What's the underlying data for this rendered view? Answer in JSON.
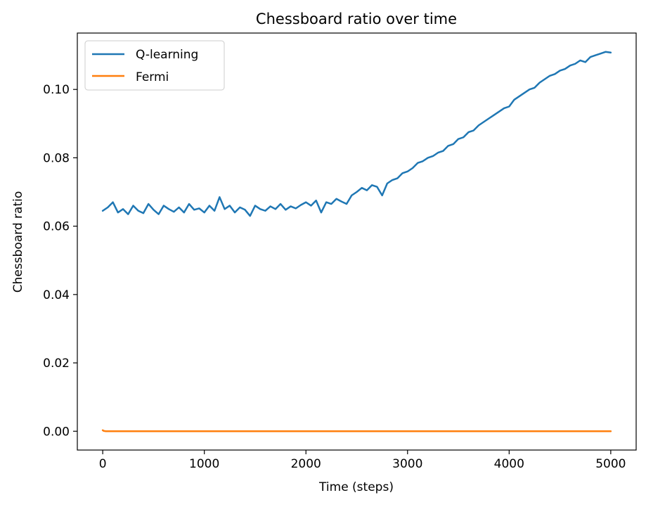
{
  "chart_data": {
    "type": "line",
    "title": "Chessboard ratio over time",
    "xlabel": "Time (steps)",
    "ylabel": "Chessboard ratio",
    "xlim": [
      -250,
      5250
    ],
    "ylim": [
      -0.0055,
      0.1165
    ],
    "xticks": [
      0,
      1000,
      2000,
      3000,
      4000,
      5000
    ],
    "xtick_labels": [
      "0",
      "1000",
      "2000",
      "3000",
      "4000",
      "5000"
    ],
    "yticks": [
      0.0,
      0.02,
      0.04,
      0.06,
      0.08,
      0.1
    ],
    "ytick_labels": [
      "0.00",
      "0.02",
      "0.04",
      "0.06",
      "0.08",
      "0.10"
    ],
    "grid": false,
    "legend_position": "top-left",
    "series": [
      {
        "name": "Q-learning",
        "color": "#1f77b4",
        "x": [
          0,
          50,
          100,
          150,
          200,
          250,
          300,
          350,
          400,
          450,
          500,
          550,
          600,
          650,
          700,
          750,
          800,
          850,
          900,
          950,
          1000,
          1050,
          1100,
          1150,
          1200,
          1250,
          1300,
          1350,
          1400,
          1450,
          1500,
          1550,
          1600,
          1650,
          1700,
          1750,
          1800,
          1850,
          1900,
          1950,
          2000,
          2050,
          2100,
          2150,
          2200,
          2250,
          2300,
          2350,
          2400,
          2450,
          2500,
          2550,
          2600,
          2650,
          2700,
          2750,
          2800,
          2850,
          2900,
          2950,
          3000,
          3050,
          3100,
          3150,
          3200,
          3250,
          3300,
          3350,
          3400,
          3450,
          3500,
          3550,
          3600,
          3650,
          3700,
          3750,
          3800,
          3850,
          3900,
          3950,
          4000,
          4050,
          4100,
          4150,
          4200,
          4250,
          4300,
          4350,
          4400,
          4450,
          4500,
          4550,
          4600,
          4650,
          4700,
          4750,
          4800,
          4850,
          4900,
          4950,
          5000
        ],
        "values": [
          0.0645,
          0.0655,
          0.067,
          0.064,
          0.065,
          0.0635,
          0.066,
          0.0645,
          0.0638,
          0.0665,
          0.0648,
          0.0635,
          0.066,
          0.065,
          0.0642,
          0.0655,
          0.064,
          0.0665,
          0.0648,
          0.0652,
          0.064,
          0.066,
          0.0645,
          0.0685,
          0.065,
          0.066,
          0.064,
          0.0655,
          0.0648,
          0.063,
          0.066,
          0.065,
          0.0645,
          0.0658,
          0.065,
          0.0665,
          0.0648,
          0.0658,
          0.0652,
          0.0662,
          0.067,
          0.066,
          0.0675,
          0.064,
          0.067,
          0.0665,
          0.068,
          0.0672,
          0.0665,
          0.069,
          0.07,
          0.0712,
          0.0705,
          0.072,
          0.0715,
          0.069,
          0.0725,
          0.0735,
          0.074,
          0.0755,
          0.076,
          0.077,
          0.0785,
          0.079,
          0.08,
          0.0805,
          0.0815,
          0.082,
          0.0835,
          0.084,
          0.0855,
          0.086,
          0.0875,
          0.088,
          0.0895,
          0.0905,
          0.0915,
          0.0925,
          0.0935,
          0.0945,
          0.095,
          0.097,
          0.098,
          0.099,
          0.1,
          0.1005,
          0.102,
          0.103,
          0.104,
          0.1045,
          0.1055,
          0.106,
          0.107,
          0.1075,
          0.1085,
          0.108,
          0.1095,
          0.11,
          0.1105,
          0.111,
          0.1108
        ]
      },
      {
        "name": "Fermi",
        "color": "#ff7f0e",
        "x": [
          0,
          10,
          30,
          100,
          5000
        ],
        "values": [
          0.0003,
          0.0001,
          0.0,
          0.0,
          0.0
        ]
      }
    ]
  }
}
